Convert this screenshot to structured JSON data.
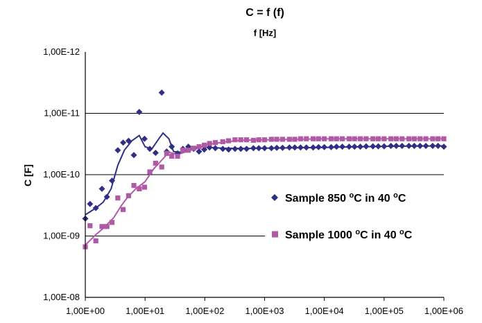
{
  "chart_data": {
    "type": "scatter",
    "title": "C = f (f)",
    "subtitle": "f [Hz]",
    "ylabel": "C [F]",
    "xscale": "log",
    "yscale": "log",
    "xlim": [
      1,
      1000000
    ],
    "ylim": [
      1e-08,
      1e-12
    ],
    "y_axis_inverted": true,
    "x_ticks": [
      "1,00E+00",
      "1,00E+01",
      "1,00E+02",
      "1,00E+03",
      "1,00E+04",
      "1,00E+05",
      "1,00E+06"
    ],
    "y_ticks": [
      "1,00E-12",
      "1,00E-11",
      "1,00E-10",
      "1,00E-09",
      "1,00E-08"
    ],
    "grid": "horizontal",
    "legend_position": "right",
    "series": [
      {
        "name": "Sample 850 °C in 40 °C",
        "label_parts": [
          "Sample 850 ",
          "o",
          "C in 40 ",
          "o",
          "C"
        ],
        "color": "#2e2f85",
        "marker": "diamond",
        "points": [
          [
            1.0,
            5.2e-10
          ],
          [
            1.2,
            3e-10
          ],
          [
            1.5,
            3.5e-10
          ],
          [
            1.9,
            1.7e-10
          ],
          [
            2.3,
            2.3e-10
          ],
          [
            2.8,
            1.25e-10
          ],
          [
            3.5,
            4e-11
          ],
          [
            4.3,
            3e-11
          ],
          [
            5.3,
            2.8e-11
          ],
          [
            6.5,
            4.8e-11
          ],
          [
            8.0,
            9.5e-12
          ],
          [
            9.8,
            2.6e-11
          ],
          [
            12,
            3.8e-11
          ],
          [
            15,
            4.4e-11
          ],
          [
            19,
            4.6e-12
          ],
          [
            23,
            4.2e-11
          ],
          [
            28,
            3.5e-11
          ],
          [
            35,
            4.5e-11
          ],
          [
            43,
            3.8e-11
          ],
          [
            53,
            3.5e-11
          ],
          [
            65,
            3.8e-11
          ],
          [
            80,
            4.2e-11
          ],
          [
            98,
            3.9e-11
          ],
          [
            120,
            3.6e-11
          ],
          [
            150,
            3.7e-11
          ],
          [
            200,
            3.8e-11
          ],
          [
            250,
            3.9e-11
          ],
          [
            320,
            3.8e-11
          ],
          [
            400,
            3.8e-11
          ],
          [
            500,
            3.8e-11
          ],
          [
            650,
            3.7e-11
          ],
          [
            800,
            3.7e-11
          ],
          [
            1000,
            3.7e-11
          ],
          [
            1300,
            3.7e-11
          ],
          [
            1600,
            3.65e-11
          ],
          [
            2000,
            3.65e-11
          ],
          [
            2600,
            3.6e-11
          ],
          [
            3200,
            3.6e-11
          ],
          [
            4000,
            3.6e-11
          ],
          [
            5000,
            3.6e-11
          ],
          [
            6500,
            3.6e-11
          ],
          [
            8000,
            3.55e-11
          ],
          [
            10000,
            3.55e-11
          ],
          [
            13000,
            3.55e-11
          ],
          [
            16000,
            3.5e-11
          ],
          [
            20000,
            3.5e-11
          ],
          [
            26000,
            3.5e-11
          ],
          [
            32000,
            3.5e-11
          ],
          [
            40000,
            3.5e-11
          ],
          [
            50000,
            3.45e-11
          ],
          [
            65000,
            3.45e-11
          ],
          [
            80000,
            3.45e-11
          ],
          [
            100000,
            3.45e-11
          ],
          [
            130000,
            3.4e-11
          ],
          [
            160000,
            3.4e-11
          ],
          [
            200000,
            3.4e-11
          ],
          [
            260000,
            3.4e-11
          ],
          [
            320000,
            3.4e-11
          ],
          [
            400000,
            3.4e-11
          ],
          [
            500000,
            3.4e-11
          ],
          [
            650000,
            3.4e-11
          ],
          [
            800000,
            3.4e-11
          ],
          [
            1000000,
            3.5e-11
          ]
        ],
        "trend": [
          [
            1.0,
            4.5e-10
          ],
          [
            1.5,
            3.5e-10
          ],
          [
            2.0,
            2.8e-10
          ],
          [
            2.7,
            1.7e-10
          ],
          [
            3.5,
            7e-11
          ],
          [
            4.5,
            4e-11
          ],
          [
            6.0,
            2.8e-11
          ],
          [
            8.0,
            2.3e-11
          ],
          [
            10,
            3.5e-11
          ],
          [
            13,
            3.8e-11
          ],
          [
            17,
            2.6e-11
          ],
          [
            20,
            2.1e-11
          ],
          [
            25,
            2.6e-11
          ],
          [
            30,
            4.2e-11
          ],
          [
            40,
            4.3e-11
          ],
          [
            55,
            3.8e-11
          ],
          [
            80,
            3.5e-11
          ],
          [
            120,
            3.6e-11
          ],
          [
            200,
            3.7e-11
          ],
          [
            500,
            3.75e-11
          ],
          [
            1000,
            3.7e-11
          ],
          [
            10000,
            3.6e-11
          ],
          [
            100000,
            3.45e-11
          ],
          [
            1000000,
            3.4e-11
          ]
        ]
      },
      {
        "name": "Sample 1000 °C in 40 °C",
        "label_parts": [
          "Sample 1000 ",
          "o",
          "C in 40 ",
          "o",
          "C"
        ],
        "color": "#b05aa6",
        "marker": "square",
        "points": [
          [
            1.0,
            1.5e-09
          ],
          [
            1.2,
            6.8e-10
          ],
          [
            1.5,
            1.2e-09
          ],
          [
            1.9,
            7e-10
          ],
          [
            2.3,
            7e-10
          ],
          [
            2.8,
            6e-10
          ],
          [
            3.5,
            2.4e-10
          ],
          [
            4.3,
            3.7e-10
          ],
          [
            5.3,
            2.2e-10
          ],
          [
            6.5,
            1.5e-10
          ],
          [
            8.0,
            1.7e-10
          ],
          [
            9.8,
            1.6e-10
          ],
          [
            12,
            9e-11
          ],
          [
            15,
            6.5e-11
          ],
          [
            19,
            7.5e-11
          ],
          [
            23,
            4.5e-11
          ],
          [
            28,
            5e-11
          ],
          [
            35,
            5e-11
          ],
          [
            43,
            4e-11
          ],
          [
            53,
            4e-11
          ],
          [
            65,
            3.7e-11
          ],
          [
            80,
            3.5e-11
          ],
          [
            98,
            3.3e-11
          ],
          [
            120,
            3.1e-11
          ],
          [
            150,
            3e-11
          ],
          [
            200,
            2.9e-11
          ],
          [
            250,
            2.8e-11
          ],
          [
            320,
            2.7e-11
          ],
          [
            400,
            2.7e-11
          ],
          [
            500,
            2.7e-11
          ],
          [
            650,
            2.75e-11
          ],
          [
            800,
            2.7e-11
          ],
          [
            1000,
            2.7e-11
          ],
          [
            1300,
            2.65e-11
          ],
          [
            1600,
            2.65e-11
          ],
          [
            2000,
            2.65e-11
          ],
          [
            2600,
            2.65e-11
          ],
          [
            3200,
            2.65e-11
          ],
          [
            4000,
            2.6e-11
          ],
          [
            5000,
            2.6e-11
          ],
          [
            6500,
            2.6e-11
          ],
          [
            8000,
            2.6e-11
          ],
          [
            10000,
            2.6e-11
          ],
          [
            13000,
            2.6e-11
          ],
          [
            16000,
            2.6e-11
          ],
          [
            20000,
            2.6e-11
          ],
          [
            26000,
            2.6e-11
          ],
          [
            32000,
            2.6e-11
          ],
          [
            40000,
            2.6e-11
          ],
          [
            50000,
            2.6e-11
          ],
          [
            65000,
            2.6e-11
          ],
          [
            80000,
            2.6e-11
          ],
          [
            100000,
            2.6e-11
          ],
          [
            130000,
            2.6e-11
          ],
          [
            160000,
            2.6e-11
          ],
          [
            200000,
            2.6e-11
          ],
          [
            260000,
            2.6e-11
          ],
          [
            320000,
            2.6e-11
          ],
          [
            400000,
            2.6e-11
          ],
          [
            500000,
            2.6e-11
          ],
          [
            650000,
            2.6e-11
          ],
          [
            800000,
            2.6e-11
          ],
          [
            1000000,
            2.6e-11
          ]
        ],
        "trend": [
          [
            1.0,
            1.4e-09
          ],
          [
            1.5,
            9.5e-10
          ],
          [
            2.0,
            7.5e-10
          ],
          [
            3.0,
            5e-10
          ],
          [
            4.0,
            3.2e-10
          ],
          [
            5.0,
            2.4e-10
          ],
          [
            7.0,
            1.7e-10
          ],
          [
            10,
            1.3e-10
          ],
          [
            14,
            8e-11
          ],
          [
            20,
            5.5e-11
          ],
          [
            25,
            4.3e-11
          ],
          [
            35,
            4.7e-11
          ],
          [
            50,
            4.2e-11
          ],
          [
            80,
            3.6e-11
          ],
          [
            120,
            3.2e-11
          ],
          [
            200,
            2.95e-11
          ],
          [
            400,
            2.75e-11
          ],
          [
            1000,
            2.7e-11
          ],
          [
            10000,
            2.6e-11
          ],
          [
            100000,
            2.6e-11
          ],
          [
            1000000,
            2.6e-11
          ]
        ]
      }
    ]
  }
}
